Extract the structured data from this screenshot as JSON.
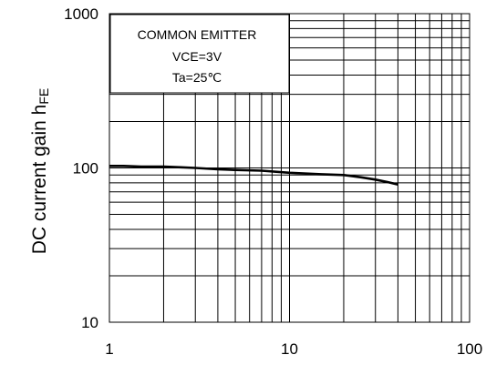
{
  "chart_data": {
    "type": "line",
    "xscale": "log",
    "yscale": "log",
    "xlim": [
      1,
      100
    ],
    "ylim": [
      10,
      1000
    ],
    "grid": true,
    "ylabel_main": "DC current gain h",
    "ylabel_sub": "FE",
    "xtick_labels": [
      "1",
      "10",
      "100"
    ],
    "ytick_labels": [
      "10",
      "100",
      "1000"
    ],
    "annotation": {
      "line1": "COMMON EMITTER",
      "line2": "VCE=3V",
      "line3": "Ta=25℃"
    },
    "series": [
      {
        "x": [
          1,
          1.2,
          1.5,
          2,
          2.5,
          3,
          4,
          5,
          7,
          10,
          12,
          15,
          20,
          25,
          30,
          35,
          40
        ],
        "y": [
          103,
          103,
          102,
          102,
          101,
          100,
          98,
          97,
          96,
          93,
          92,
          91,
          90,
          87,
          84,
          81,
          78
        ]
      }
    ]
  }
}
